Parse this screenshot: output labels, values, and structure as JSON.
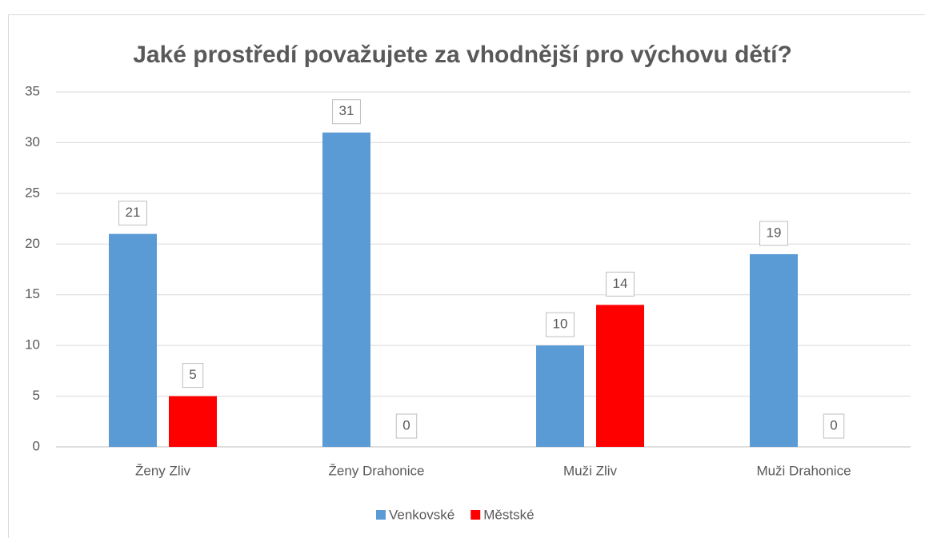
{
  "chart_data": {
    "type": "bar",
    "title": "Jaké prostředí považujete za vhodnější pro výchovu dětí?",
    "categories": [
      "Ženy Zliv",
      "Ženy Drahonice",
      "Muži Zliv",
      "Muži Drahonice"
    ],
    "series": [
      {
        "name": "Venkovské",
        "color": "#5b9bd5",
        "values": [
          21,
          31,
          10,
          19
        ]
      },
      {
        "name": "Městské",
        "color": "#ff0000",
        "values": [
          5,
          0,
          14,
          0
        ]
      }
    ],
    "ylim": [
      0,
      35
    ],
    "yticks": [
      0,
      5,
      10,
      15,
      20,
      25,
      30,
      35
    ],
    "grid": true,
    "legend": "bottom"
  }
}
